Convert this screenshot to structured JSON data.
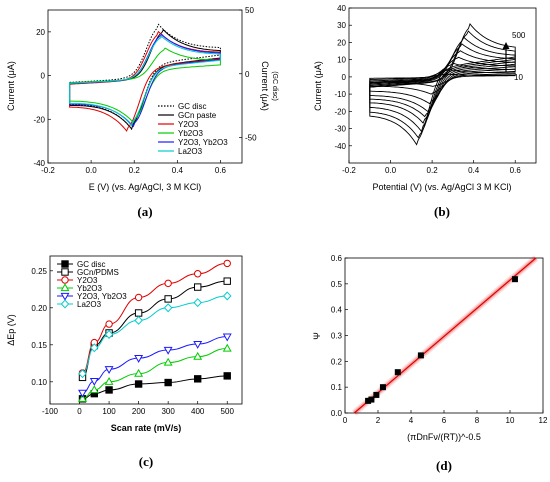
{
  "chart_data": [
    {
      "id": "a",
      "type": "line",
      "panel_label": "(a)",
      "xlabel": "E (V)  (vs. Ag/AgCl, 3 M KCl)",
      "ylabel": "Current (μA)",
      "y2label": "Current (μA)",
      "y2label_sub": "(GC disc)",
      "xlim": [
        -0.2,
        0.7
      ],
      "ylim": [
        -40,
        30
      ],
      "y2lim": [
        -70,
        50
      ],
      "xticks": [
        "-0.2",
        "0.0",
        "0.2",
        "0.4",
        "0.6"
      ],
      "yticks": [
        "-40",
        "-20",
        "0",
        "20"
      ],
      "y2ticks": [
        "-50",
        "0",
        "50"
      ],
      "series": [
        {
          "name": "GC disc",
          "color": "#000000",
          "style": "dotted",
          "axis": "right",
          "pc": 0.31,
          "ipc": 42,
          "pa": 0.19,
          "ipa": -50,
          "b": 0
        },
        {
          "name": "GCn paste",
          "color": "#000000",
          "style": "solid",
          "axis": "left",
          "pc": 0.33,
          "ipc": 23,
          "pa": 0.19,
          "ipa": -28,
          "b": 0
        },
        {
          "name": "Y2O3",
          "color": "#e00000",
          "style": "solid",
          "axis": "left",
          "pc": 0.31,
          "ipc": 22,
          "pa": 0.17,
          "ipa": -29,
          "b": 0
        },
        {
          "name": "Yb2O3",
          "color": "#00cc00",
          "style": "solid",
          "axis": "left",
          "pc": 0.34,
          "ipc": 14,
          "pa": 0.2,
          "ipa": -24,
          "b": 0
        },
        {
          "name": "Y2O3, Yb2O3",
          "color": "#1a1aff",
          "style": "solid",
          "axis": "left",
          "pc": 0.32,
          "ipc": 21,
          "pa": 0.2,
          "ipa": -27,
          "b": 0
        },
        {
          "name": "La2O3",
          "color": "#00cccc",
          "style": "solid",
          "axis": "left",
          "pc": 0.32,
          "ipc": 20,
          "pa": 0.19,
          "ipa": -26,
          "b": 0
        }
      ]
    },
    {
      "id": "b",
      "type": "line",
      "panel_label": "(b)",
      "xlabel": "Potential (V) (vs. Ag/AgCl 3 M KCl)",
      "ylabel": "Current (μA)",
      "xlim": [
        -0.2,
        0.7
      ],
      "ylim": [
        -50,
        40
      ],
      "xticks": [
        "-0.2",
        "0.0",
        "0.2",
        "0.4",
        "0.6"
      ],
      "yticks": [
        "-40",
        "-30",
        "-20",
        "-10",
        "0",
        "10",
        "20",
        "30",
        "40"
      ],
      "arrow_top": "500",
      "arrow_bottom": "10",
      "series": [
        {
          "pc": 0.27,
          "ipc": 2,
          "pa": 0.21,
          "ipa": -6,
          "b": 2
        },
        {
          "pc": 0.28,
          "ipc": 5,
          "pa": 0.2,
          "ipa": -11,
          "b": 3
        },
        {
          "pc": 0.3,
          "ipc": 9,
          "pa": 0.19,
          "ipa": -17,
          "b": 4
        },
        {
          "pc": 0.32,
          "ipc": 13,
          "pa": 0.18,
          "ipa": -22,
          "b": 5
        },
        {
          "pc": 0.33,
          "ipc": 17,
          "pa": 0.17,
          "ipa": -26,
          "b": 6
        },
        {
          "pc": 0.34,
          "ipc": 21,
          "pa": 0.16,
          "ipa": -30,
          "b": 7
        },
        {
          "pc": 0.35,
          "ipc": 25,
          "pa": 0.15,
          "ipa": -35,
          "b": 8
        },
        {
          "pc": 0.37,
          "ipc": 29,
          "pa": 0.14,
          "ipa": -40,
          "b": 9
        },
        {
          "pc": 0.38,
          "ipc": 33,
          "pa": 0.13,
          "ipa": -44,
          "b": 10
        }
      ]
    },
    {
      "id": "c",
      "type": "line",
      "panel_label": "(c)",
      "xlabel": "Scan rate (mV/s)",
      "ylabel": "ΔEp (V)",
      "xlim": [
        -100,
        550
      ],
      "ylim": [
        0.07,
        0.27
      ],
      "xticks": [
        "-100",
        "0",
        "100",
        "200",
        "300",
        "400",
        "500"
      ],
      "yticks": [
        "0.10",
        "0.15",
        "0.20",
        "0.25"
      ],
      "x": [
        10,
        50,
        100,
        200,
        300,
        400,
        500
      ],
      "series": [
        {
          "name": "GC disc",
          "color": "#000000",
          "marker": "square-filled",
          "values": [
            0.077,
            0.084,
            0.089,
            0.097,
            0.099,
            0.104,
            0.108
          ]
        },
        {
          "name": "GCn/PDMS",
          "color": "#000000",
          "marker": "square-open",
          "values": [
            0.106,
            0.149,
            0.166,
            0.193,
            0.212,
            0.228,
            0.236
          ]
        },
        {
          "name": "Y2O3",
          "color": "#e00000",
          "marker": "circle-open",
          "values": [
            0.112,
            0.153,
            0.178,
            0.214,
            0.233,
            0.246,
            0.26
          ]
        },
        {
          "name": "Yb2O3",
          "color": "#00cc00",
          "marker": "triangle-up-open",
          "values": [
            0.077,
            0.089,
            0.1,
            0.111,
            0.126,
            0.134,
            0.145
          ]
        },
        {
          "name": "Y2O3, Yb2O3",
          "color": "#1a1aff",
          "marker": "triangle-down-open",
          "values": [
            0.085,
            0.101,
            0.117,
            0.132,
            0.143,
            0.151,
            0.161
          ]
        },
        {
          "name": "La2O3",
          "color": "#00cccc",
          "marker": "diamond-open",
          "values": [
            0.111,
            0.146,
            0.164,
            0.183,
            0.2,
            0.207,
            0.216
          ]
        }
      ]
    },
    {
      "id": "d",
      "type": "scatter",
      "panel_label": "(d)",
      "xlabel": "(πDnFν/(RT))^-0.5",
      "ylabel": "Ψ",
      "xlim": [
        0,
        12
      ],
      "ylim": [
        0,
        0.6
      ],
      "xticks": [
        "0",
        "2",
        "4",
        "6",
        "8",
        "10",
        "12"
      ],
      "yticks": [
        "0.0",
        "0.1",
        "0.2",
        "0.3",
        "0.4",
        "0.5",
        "0.6"
      ],
      "points": [
        [
          1.4,
          0.047
        ],
        [
          1.6,
          0.052
        ],
        [
          1.9,
          0.07
        ],
        [
          2.3,
          0.1
        ],
        [
          3.2,
          0.158
        ],
        [
          4.6,
          0.223
        ],
        [
          10.3,
          0.518
        ]
      ],
      "fit": {
        "slope": 0.0545,
        "intercept": -0.0306
      },
      "marker_color": "#000000",
      "fit_color": "#e00000"
    }
  ]
}
